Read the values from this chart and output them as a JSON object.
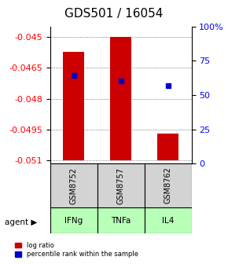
{
  "title": "GDS501 / 16054",
  "samples": [
    "GSM8752",
    "GSM8757",
    "GSM8762"
  ],
  "agents": [
    "IFNg",
    "TNFa",
    "IL4"
  ],
  "bar_tops": [
    -0.04575,
    -0.045,
    -0.0497
  ],
  "bar_base": -0.051,
  "percentile_values": [
    64,
    60,
    57
  ],
  "ylim_left": [
    -0.05115,
    -0.0445
  ],
  "ylim_right": [
    0,
    100
  ],
  "yticks_left": [
    -0.051,
    -0.0495,
    -0.048,
    -0.0465,
    -0.045
  ],
  "yticks_right": [
    0,
    25,
    50,
    75,
    100
  ],
  "bar_color": "#cc0000",
  "dot_color": "#0000cc",
  "sample_bg": "#d3d3d3",
  "agent_bg": "#b8ffb8",
  "legend_logratio_color": "#cc0000",
  "legend_percentile_color": "#0000cc",
  "grid_color": "#555555",
  "title_fontsize": 11,
  "tick_fontsize": 8,
  "label_fontsize": 8
}
